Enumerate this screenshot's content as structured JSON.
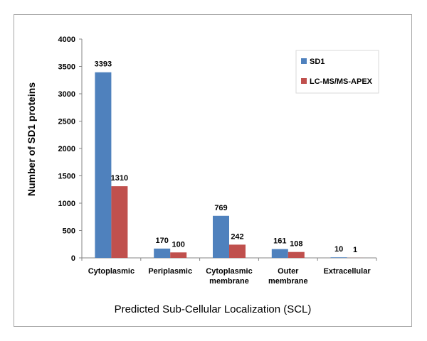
{
  "chart_data": {
    "type": "bar",
    "categories": [
      [
        "Cytoplasmic"
      ],
      [
        "Periplasmic"
      ],
      [
        "Cytoplasmic",
        "membrane"
      ],
      [
        "Outer",
        "membrane"
      ],
      [
        "Extracellular"
      ]
    ],
    "series": [
      {
        "name": "SD1",
        "color": "#4f81bd",
        "values": [
          3393,
          170,
          769,
          161,
          10
        ]
      },
      {
        "name": "LC-MS/MS-APEX",
        "color": "#c0504d",
        "values": [
          1310,
          100,
          242,
          108,
          1
        ]
      }
    ],
    "ylabel": "Number of SD1 proteins",
    "xlabel": "Predicted Sub-Cellular Localization (SCL)",
    "ylim": [
      0,
      4000
    ],
    "yticks": [
      0,
      500,
      1000,
      1500,
      2000,
      2500,
      3000,
      3500,
      4000
    ],
    "legend_position": "top-right",
    "grid": false
  }
}
